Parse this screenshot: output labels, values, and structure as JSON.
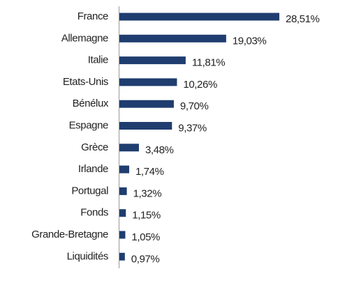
{
  "chart_data": {
    "type": "bar",
    "orientation": "horizontal",
    "color": "#1f3d6f",
    "categories": [
      "France",
      "Allemagne",
      "Italie",
      "Etats-Unis",
      "Bénélux",
      "Espagne",
      "Grèce",
      "Irlande",
      "Portugal",
      "Fonds",
      "Grande-Bretagne",
      "Liquidités"
    ],
    "values": [
      28.51,
      19.03,
      11.81,
      10.26,
      9.7,
      9.37,
      3.48,
      1.74,
      1.32,
      1.15,
      1.05,
      0.97
    ],
    "value_labels": [
      "28,51%",
      "19,03%",
      "11,81%",
      "10,26%",
      "9,70%",
      "9,37%",
      "3,48%",
      "1,74%",
      "1,32%",
      "1,15%",
      "1,05%",
      "0,97%"
    ]
  }
}
